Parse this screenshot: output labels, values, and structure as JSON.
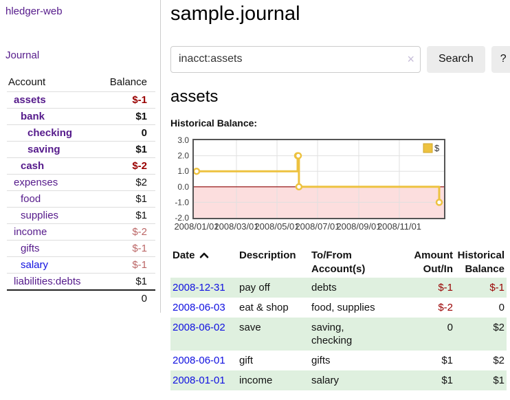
{
  "app": {
    "brand": "hledger-web",
    "nav_journal": "Journal"
  },
  "sidebar": {
    "columns": {
      "account": "Account",
      "balance": "Balance"
    },
    "accounts": [
      {
        "name": "assets",
        "level": 0,
        "balance": "$-1",
        "current": true,
        "negative": "strong"
      },
      {
        "name": "bank",
        "level": 1,
        "balance": "$1",
        "current": true,
        "negative": "none"
      },
      {
        "name": "checking",
        "level": 2,
        "balance": "0",
        "current": true,
        "negative": "none"
      },
      {
        "name": "saving",
        "level": 2,
        "balance": "$1",
        "current": true,
        "negative": "none"
      },
      {
        "name": "cash",
        "level": 1,
        "balance": "$-2",
        "current": true,
        "negative": "strong"
      },
      {
        "name": "expenses",
        "level": 0,
        "balance": "$2",
        "current": false,
        "negative": "none"
      },
      {
        "name": "food",
        "level": 1,
        "balance": "$1",
        "current": false,
        "negative": "none"
      },
      {
        "name": "supplies",
        "level": 1,
        "balance": "$1",
        "current": false,
        "negative": "none"
      },
      {
        "name": "income",
        "level": 0,
        "balance": "$-2",
        "current": false,
        "negative": "soft"
      },
      {
        "name": "gifts",
        "level": 1,
        "balance": "$-1",
        "current": false,
        "negative": "soft"
      },
      {
        "name": "salary",
        "level": 1,
        "balance": "$-1",
        "current": false,
        "negative": "soft",
        "link_state": "unvisited"
      },
      {
        "name": "liabilities:debts",
        "level": 0,
        "balance": "$1",
        "current": false,
        "negative": "none"
      }
    ],
    "total": "0"
  },
  "main": {
    "title": "sample.journal",
    "search": {
      "value": "inacct:assets",
      "clear_icon": "×",
      "search_label": "Search",
      "help_label": "?"
    },
    "account_title": "assets",
    "chart_heading": "Historical Balance:"
  },
  "chart_data": {
    "type": "line",
    "title": "Historical Balance",
    "legend": {
      "position": "top-right",
      "label": "$"
    },
    "series": [
      {
        "name": "$",
        "color": "#edc240",
        "step": true,
        "points": [
          [
            "2008-01-01",
            1
          ],
          [
            "2008-06-01",
            2
          ],
          [
            "2008-06-02",
            2
          ],
          [
            "2008-06-03",
            0
          ],
          [
            "2008-12-31",
            -1
          ]
        ]
      }
    ],
    "x_ticks": [
      "2008/01/01",
      "2008/03/01",
      "2008/05/01",
      "2008/07/01",
      "2008/09/01",
      "2008/11/01"
    ],
    "y_ticks": [
      3,
      2,
      1,
      0,
      -1,
      -2
    ],
    "ylim": [
      -2,
      3
    ],
    "x_range": [
      "2008-01-01",
      "2008-12-31"
    ],
    "grid": true,
    "negative_region": true
  },
  "register": {
    "columns": {
      "date": "Date",
      "description": "Description",
      "accounts": "To/From Account(s)",
      "amount": "Amount Out/In",
      "balance": "Historical Balance"
    },
    "sort": "date-ascending",
    "rows": [
      {
        "date": "2008-12-31",
        "description": "pay off",
        "accounts": "debts",
        "amount": "$-1",
        "balance": "$-1",
        "amount_negative": true,
        "balance_negative": true,
        "highlighted": true
      },
      {
        "date": "2008-06-03",
        "description": "eat & shop",
        "accounts": "food, supplies",
        "amount": "$-2",
        "balance": "0",
        "amount_negative": true,
        "balance_negative": false,
        "highlighted": false
      },
      {
        "date": "2008-06-02",
        "description": "save",
        "accounts": "saving, checking",
        "amount": "0",
        "balance": "$2",
        "amount_negative": false,
        "balance_negative": false,
        "highlighted": true
      },
      {
        "date": "2008-06-01",
        "description": "gift",
        "accounts": "gifts",
        "amount": "$1",
        "balance": "$2",
        "amount_negative": false,
        "balance_negative": false,
        "highlighted": false
      },
      {
        "date": "2008-01-01",
        "description": "income",
        "accounts": "salary",
        "amount": "$1",
        "balance": "$1",
        "amount_negative": false,
        "balance_negative": false,
        "highlighted": true
      }
    ]
  },
  "colors": {
    "link_purple": "#551a8b",
    "link_blue": "#0f0fe0",
    "negative_strong": "#990000",
    "negative_soft": "#bb6666",
    "row_highlight": "#dff0df",
    "chart_line": "#edc240",
    "chart_negative_region": "#fcdede",
    "chart_zero_line": "#8b0000",
    "chart_border": "#545454",
    "chart_grid": "#e0e0e0",
    "button_bg": "#ececec"
  }
}
